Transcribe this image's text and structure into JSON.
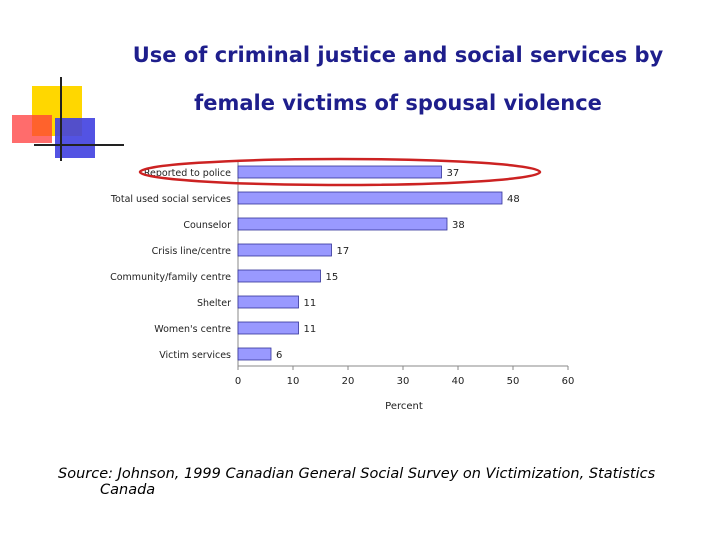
{
  "slide": {
    "title_line_1": "Use of criminal justice and social services by",
    "title_line_2": "female victims of spousal violence",
    "source_line_1": "Source: Johnson, 1999 Canadian General Social Survey on Victimization, Statistics",
    "source_line_2": "Canada"
  },
  "colors": {
    "title": "#1e1e8c",
    "bar_fill": "#9999ff",
    "bar_stroke": "#333399",
    "highlight_ellipse": "#cc2222",
    "deco_yellow": "#ffd700",
    "deco_red": "#ff3b3b",
    "deco_blue": "#4040e0"
  },
  "chart_data": {
    "type": "bar",
    "orientation": "horizontal",
    "categories": [
      "Reported to police",
      "Total used social services",
      "Counselor",
      "Crisis line/centre",
      "Community/family centre",
      "Shelter",
      "Women's centre",
      "Victim services"
    ],
    "values": [
      37,
      48,
      38,
      17,
      15,
      11,
      11,
      6
    ],
    "xlabel": "Percent",
    "ylabel": "",
    "xlim": [
      0,
      60
    ],
    "xticks": [
      0,
      10,
      20,
      30,
      40,
      50,
      60
    ],
    "highlighted_category": "Reported to police",
    "grid": false
  }
}
